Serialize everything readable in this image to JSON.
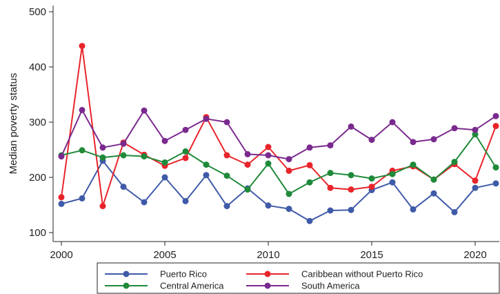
{
  "chart_data": {
    "type": "line",
    "title": "",
    "xlabel": "",
    "ylabel": "Median poverty status",
    "xlim": [
      2000,
      2021
    ],
    "ylim": [
      100,
      500
    ],
    "xticks": [
      2000,
      2005,
      2010,
      2015,
      2020
    ],
    "yticks": [
      100,
      200,
      300,
      400,
      500
    ],
    "grid": false,
    "legend_position": "bottom",
    "x": [
      2000,
      2001,
      2002,
      2003,
      2004,
      2005,
      2006,
      2007,
      2008,
      2009,
      2010,
      2011,
      2012,
      2013,
      2014,
      2015,
      2016,
      2017,
      2018,
      2019,
      2020,
      2021
    ],
    "series": [
      {
        "name": "Puerto Rico",
        "color": "#3f5aa8",
        "values": [
          152,
          162,
          230,
          183,
          155,
          200,
          157,
          204,
          148,
          180,
          149,
          143,
          121,
          140,
          141,
          177,
          191,
          142,
          171,
          137,
          181,
          189
        ]
      },
      {
        "name": "Caribbean without Puerto Rico",
        "color": "#e8242a",
        "values": [
          164,
          438,
          148,
          263,
          241,
          221,
          235,
          309,
          240,
          223,
          255,
          212,
          222,
          181,
          178,
          183,
          212,
          220,
          196,
          224,
          194,
          293
        ]
      },
      {
        "name": "Central America",
        "color": "#1f8a3a",
        "values": [
          240,
          249,
          236,
          240,
          238,
          227,
          247,
          223,
          203,
          178,
          225,
          170,
          191,
          208,
          204,
          198,
          206,
          223,
          196,
          228,
          278,
          218
        ]
      },
      {
        "name": "South America",
        "color": "#7a2a8e",
        "values": [
          238,
          322,
          254,
          261,
          321,
          266,
          286,
          306,
          300,
          242,
          240,
          233,
          254,
          258,
          292,
          268,
          300,
          264,
          269,
          289,
          286,
          311
        ]
      }
    ]
  }
}
